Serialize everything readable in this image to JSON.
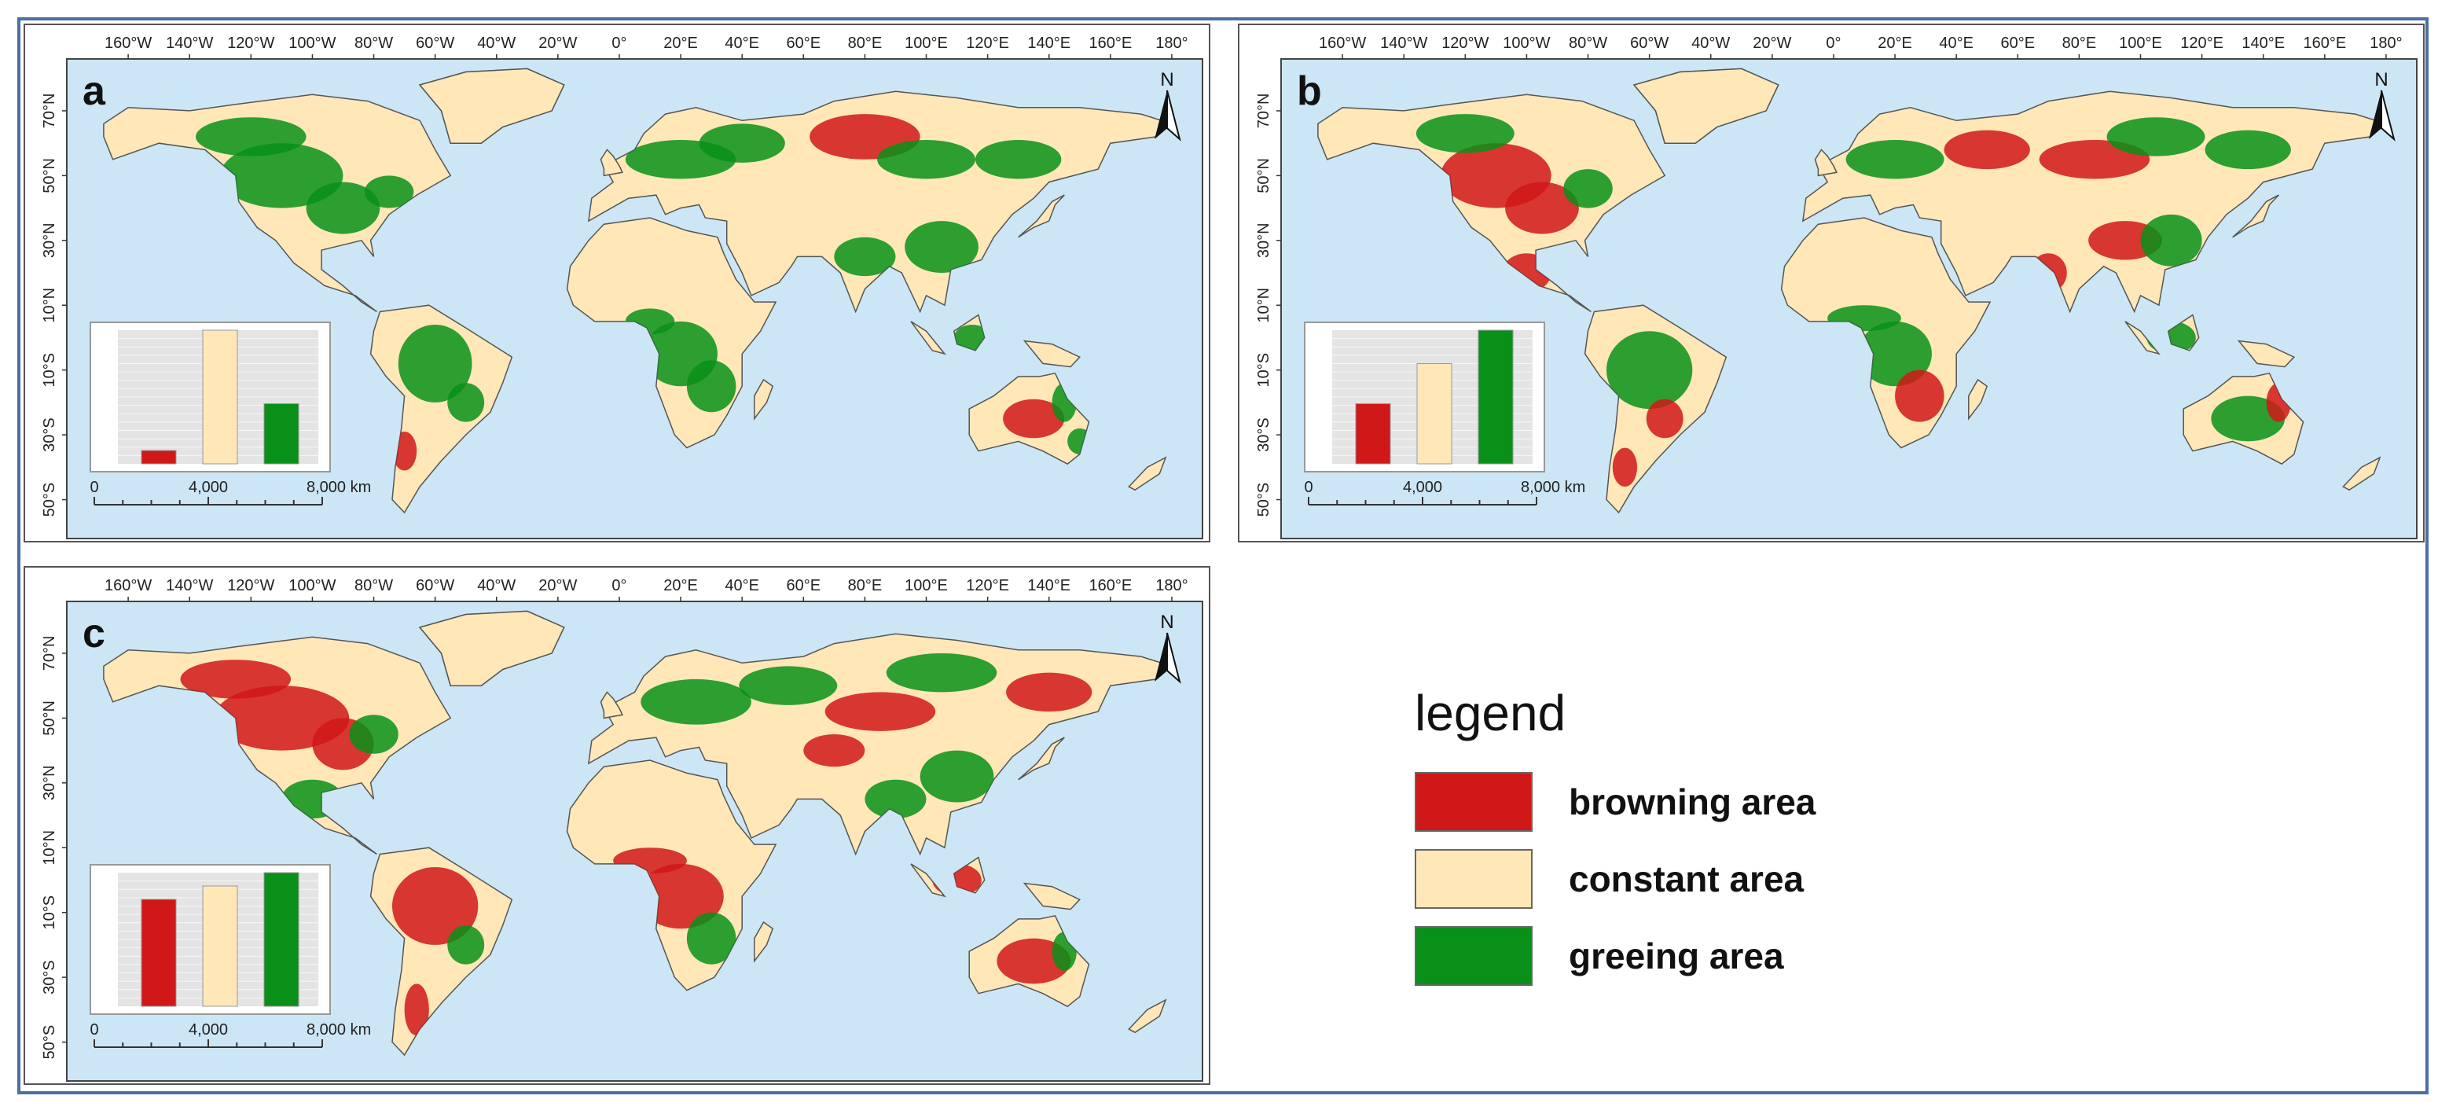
{
  "colors": {
    "ocean": "#cde6f5",
    "land": "#ffe7b8",
    "browning": "#d01818",
    "constant": "#ffe7b8",
    "greening": "#089018",
    "frame": "#4a6fa5"
  },
  "axis": {
    "lon_labels": [
      "160°W",
      "140°W",
      "120°W",
      "100°W",
      "80°W",
      "60°W",
      "40°W",
      "20°W",
      "0°",
      "20°E",
      "40°E",
      "60°E",
      "80°E",
      "100°E",
      "120°E",
      "140°E",
      "160°E",
      "180°"
    ],
    "lat_labels": [
      "70°N",
      "50°N",
      "30°N",
      "10°N",
      "10°S",
      "30°S",
      "50°S"
    ]
  },
  "scalebar": {
    "zero": "0",
    "mid": "4,000",
    "end": "8,000 km"
  },
  "north_label": "N",
  "panels": [
    {
      "letter": "a",
      "inset": {
        "values": [
          0.1,
          1.0,
          0.45
        ]
      }
    },
    {
      "letter": "b",
      "inset": {
        "values": [
          0.45,
          0.75,
          1.0
        ]
      }
    },
    {
      "letter": "c",
      "inset": {
        "values": [
          0.8,
          0.9,
          1.0
        ]
      }
    }
  ],
  "legend": {
    "title": "legend",
    "items": [
      {
        "label": "browning area",
        "color": "#d01818"
      },
      {
        "label": "constant area",
        "color": "#ffe7b8"
      },
      {
        "label": "greeing area",
        "color": "#089018"
      }
    ]
  }
}
